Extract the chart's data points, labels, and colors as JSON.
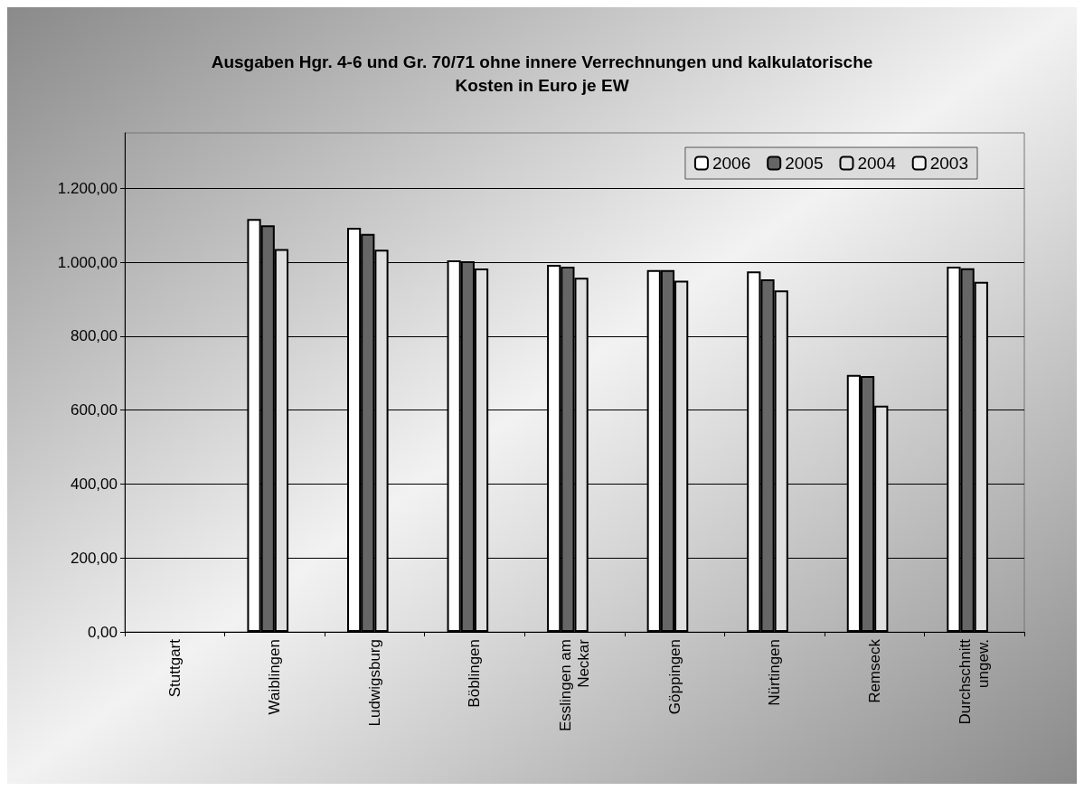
{
  "chart_data": {
    "type": "bar",
    "title": "Ausgaben Hgr. 4-6 und Gr. 70/71 ohne innere Verrechnungen und kalkulatorische\nKosten in Euro je EW",
    "categories": [
      "Stuttgart",
      "Waiblingen",
      "Ludwigsburg",
      "Böblingen",
      "Esslingen am\nNeckar",
      "Göppingen",
      "Nürtingen",
      "Remseck",
      "Durchschnitt\nungew."
    ],
    "series": [
      {
        "name": "2006",
        "color": "#ffffff",
        "values": [
          null,
          1117,
          1093,
          1005,
          993,
          979,
          975,
          695,
          988
        ]
      },
      {
        "name": "2005",
        "color": "#666666",
        "values": [
          null,
          1100,
          1077,
          1003,
          988,
          979,
          954,
          692,
          984
        ]
      },
      {
        "name": "2004",
        "color": "#e0e0e0",
        "values": [
          null,
          1036,
          1034,
          983,
          958,
          950,
          924,
          612,
          947
        ]
      },
      {
        "name": "2003",
        "color": "#f4f4f4",
        "values": [
          null,
          null,
          null,
          null,
          null,
          null,
          null,
          null,
          null
        ]
      }
    ],
    "ylim": [
      0,
      1350
    ],
    "yticks": [
      {
        "value": 0,
        "label": "0,00"
      },
      {
        "value": 200,
        "label": "200,00"
      },
      {
        "value": 400,
        "label": "400,00"
      },
      {
        "value": 600,
        "label": "600,00"
      },
      {
        "value": 800,
        "label": "800,00"
      },
      {
        "value": 1000,
        "label": "1.000,00"
      },
      {
        "value": 1200,
        "label": "1.200,00"
      }
    ],
    "grid": "y",
    "legend": "top right"
  }
}
